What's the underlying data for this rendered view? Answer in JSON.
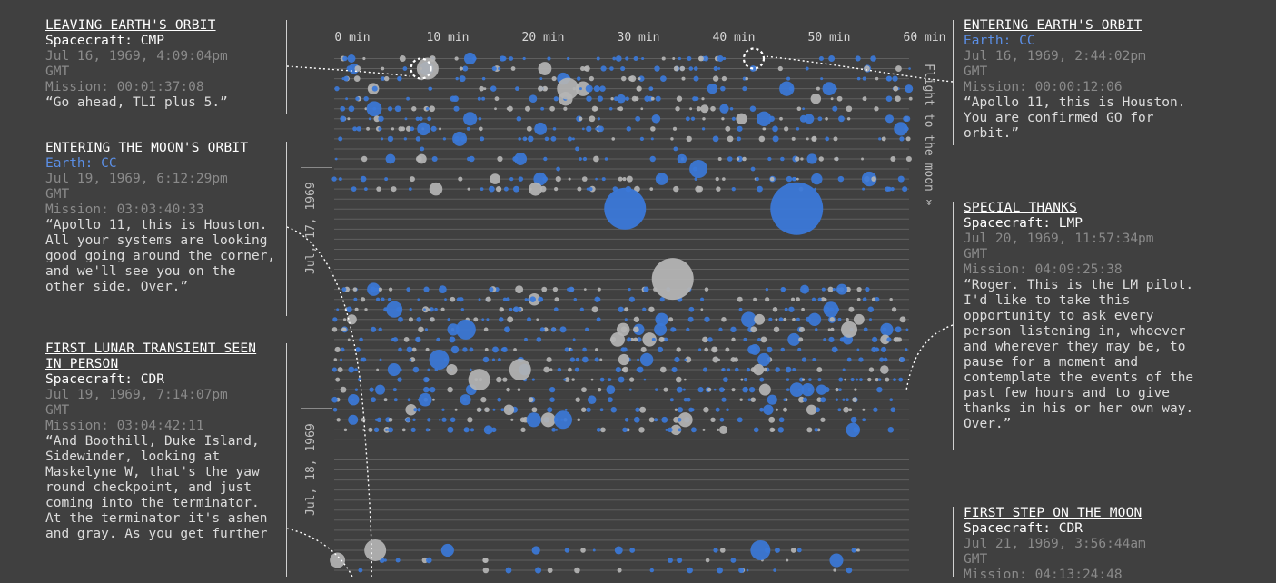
{
  "left_cards": [
    {
      "title": "LEAVING EARTH'S ORBIT",
      "speaker": "Spacecraft: CMP",
      "speaker_type": "spacecraft",
      "time": "Jul 16, 1969, 4:09:04pm",
      "tz": "GMT",
      "mission": "Mission: 00:01:37:08",
      "quote": "“Go ahead, TLI plus 5.”"
    },
    {
      "title": "ENTERING THE MOON'S ORBIT",
      "speaker": "Earth: CC",
      "speaker_type": "earth",
      "time": "Jul 19, 1969, 6:12:29pm",
      "tz": "GMT",
      "mission": "Mission: 03:03:40:33",
      "quote": "“Apollo 11, this is Houston. All your systems are looking good going around the corner, and we'll see you on the other side. Over.”"
    },
    {
      "title": "FIRST LUNAR TRANSIENT SEEN IN PERSON",
      "speaker": "Spacecraft: CDR",
      "speaker_type": "spacecraft",
      "time": "Jul 19, 1969, 7:14:07pm",
      "tz": "GMT",
      "mission": "Mission: 03:04:42:11",
      "quote": "“And Boothill, Duke Island, Sidewinder, looking at Maskelyne W, that's the yaw round checkpoint, and just coming into the terminator. At the terminator it's ashen and gray. As you get further"
    }
  ],
  "right_cards": [
    {
      "title": "ENTERING EARTH'S ORBIT",
      "speaker": "Earth: CC",
      "speaker_type": "earth",
      "time": "Jul 16, 1969, 2:44:02pm",
      "tz": "GMT",
      "mission": "Mission: 00:00:12:06",
      "quote": "“Apollo 11, this is Houston. You are confirmed GO for orbit.”"
    },
    {
      "title": "SPECIAL THANKS",
      "speaker": "Spacecraft: LMP",
      "speaker_type": "spacecraft",
      "time": "Jul 20, 1969, 11:57:34pm",
      "tz": "GMT",
      "mission": "Mission: 04:09:25:38",
      "quote": "“Roger. This is the LM pilot. I'd like to take this opportunity to ask every person listening in, whoever and wherever they may be, to pause for a moment and contemplate the events of the past few hours and to give thanks in his or her own way. Over.”"
    },
    {
      "title": "FIRST STEP ON THE MOON",
      "speaker": "Spacecraft: CDR",
      "speaker_type": "spacecraft",
      "time": "Jul 21, 1969, 3:56:44am",
      "tz": "GMT",
      "mission": "Mission: 04:13:24:48",
      "quote": ""
    }
  ],
  "chart_data": {
    "type": "scatter",
    "x_label_unit": "minutes past the hour",
    "x_ticks": [
      "0 min",
      "10 min",
      "20 min",
      "30 min",
      "40 min",
      "50 min",
      "60 min"
    ],
    "xlim": [
      0,
      65
    ],
    "rows_are": "hours of mission, one row per hour, top to bottom",
    "date_labels": [
      "Jul, 17, 1969",
      "Jul, 18, 1969"
    ],
    "flight_label": "Flight to the moon »",
    "colors": {
      "background": "#404040",
      "earth": "#3b78d8",
      "spacecraft": "#b4b4b4",
      "gridline": "#5f5f5f"
    },
    "series": [
      {
        "name": "Earth",
        "color": "#3b78d8"
      },
      {
        "name": "Spacecraft",
        "color": "#b4b4b4"
      }
    ],
    "highlighted_points": [
      {
        "label": "LEAVING EARTH'S ORBIT",
        "hour": 1,
        "minute": 9.1
      },
      {
        "label": "ENTERING EARTH'S ORBIT",
        "hour": 0,
        "minute": 44.0
      }
    ],
    "large_bubbles": [
      {
        "hour": 15,
        "minute": 30.5,
        "series": "Earth",
        "size": "large"
      },
      {
        "hour": 15,
        "minute": 48.5,
        "series": "Earth",
        "size": "largest"
      },
      {
        "hour": 22,
        "minute": 35.5,
        "series": "Spacecraft",
        "size": "large"
      }
    ]
  }
}
